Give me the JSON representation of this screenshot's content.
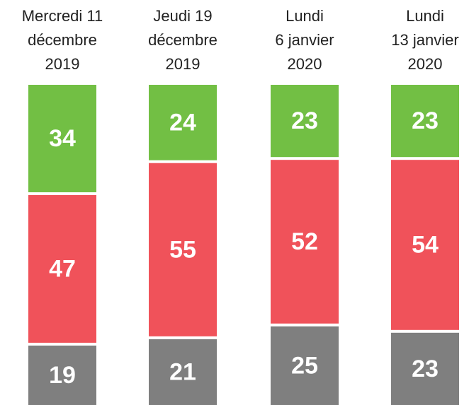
{
  "chart_data": {
    "type": "stacked_bar",
    "categories": [
      "Mercredi 11\ndécembre\n2019",
      "Jeudi 19\ndécembre\n2019",
      "Lundi\n6 janvier\n2020",
      "Lundi\n13 janvier\n2020"
    ],
    "series": [
      {
        "color": "#7f7f7f",
        "values": [
          19,
          21,
          25,
          23
        ]
      },
      {
        "color": "#f0525a",
        "values": [
          47,
          55,
          52,
          54
        ]
      },
      {
        "color": "#72bf44",
        "values": [
          34,
          24,
          23,
          23
        ]
      }
    ]
  }
}
